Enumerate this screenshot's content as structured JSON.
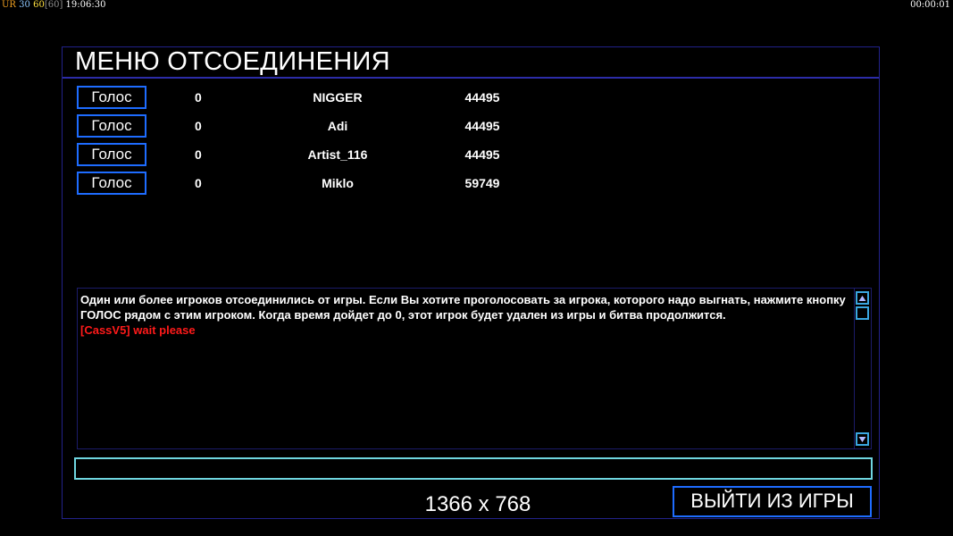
{
  "hud": {
    "ur": "UR",
    "fps_a": "30",
    "fps_b": "60",
    "fps_cap": "[60]",
    "clock": "19:06:30",
    "timer": "00:00:01",
    "colors": {
      "ur": "#f0a020",
      "fps_a": "#8ec8ff",
      "fps_b": "#ffe040",
      "fps_cap": "#909090"
    }
  },
  "menu": {
    "title": "МЕНЮ ОТСОЕДИНЕНИЯ",
    "players": [
      {
        "vote_label": "Голос",
        "votes": "0",
        "name": "NIGGER",
        "score": "44495"
      },
      {
        "vote_label": "Голос",
        "votes": "0",
        "name": "Adi",
        "score": "44495"
      },
      {
        "vote_label": "Голос",
        "votes": "0",
        "name": "Artist_116",
        "score": "44495"
      },
      {
        "vote_label": "Голос",
        "votes": "0",
        "name": "Miklo",
        "score": "59749"
      }
    ],
    "message": "Один или более игроков отсоединились от игры. Если Вы хотите проголосовать за игрока, которого надо выгнать, нажмите кнопку ГОЛОС рядом с этим игроком. Когда время дойдет до 0, этот игрок будет удален из игры и битва продолжится.",
    "chat_line": "[CassV5] wait please",
    "input_value": "",
    "exit_label": "ВЫЙТИ ИЗ ИГРЫ"
  },
  "resolution_watermark": "1366 x 768"
}
